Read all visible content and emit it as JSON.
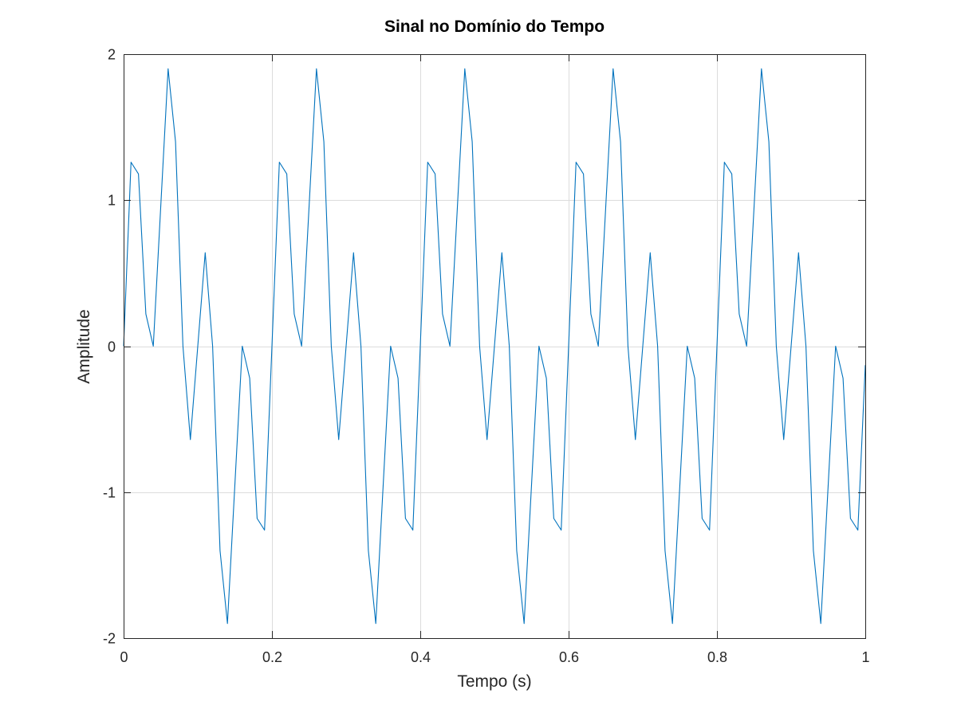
{
  "chart_data": {
    "type": "line",
    "title": "Sinal no Domínio do Tempo",
    "xlabel": "Tempo (s)",
    "ylabel": "Amplitude",
    "xlim": [
      0,
      1
    ],
    "ylim": [
      -2,
      2
    ],
    "x_ticks": [
      0,
      0.2,
      0.4,
      0.6,
      0.8,
      1
    ],
    "x_tick_labels": [
      "0",
      "0.2",
      "0.4",
      "0.6",
      "0.8",
      "1"
    ],
    "y_ticks": [
      -2,
      -1,
      0,
      1,
      2
    ],
    "y_tick_labels": [
      "-2",
      "-1",
      "0",
      "1",
      "2"
    ],
    "grid": true,
    "series": [
      {
        "color": "#0072bd",
        "x": [
          0,
          0.01,
          0.02,
          0.03,
          0.04,
          0.05,
          0.06,
          0.07,
          0.08,
          0.09,
          0.1,
          0.11,
          0.12,
          0.13,
          0.14,
          0.15,
          0.16,
          0.17,
          0.18,
          0.19,
          0.2,
          0.21,
          0.22,
          0.23,
          0.24,
          0.25,
          0.26,
          0.27,
          0.28,
          0.29,
          0.3,
          0.31,
          0.32,
          0.33,
          0.34,
          0.35,
          0.36,
          0.37,
          0.38,
          0.39,
          0.4,
          0.41,
          0.42,
          0.43,
          0.44,
          0.45,
          0.46,
          0.47,
          0.48,
          0.49,
          0.5,
          0.51,
          0.52,
          0.53,
          0.54,
          0.55,
          0.56,
          0.57,
          0.58,
          0.59,
          0.6,
          0.61,
          0.62,
          0.63,
          0.64,
          0.65,
          0.66,
          0.67,
          0.68,
          0.69,
          0.7,
          0.71,
          0.72,
          0.73,
          0.74,
          0.75,
          0.76,
          0.77,
          0.78,
          0.79,
          0.8,
          0.81,
          0.82,
          0.83,
          0.84,
          0.85,
          0.86,
          0.87,
          0.88,
          0.89,
          0.9,
          0.91,
          0.92,
          0.93,
          0.94,
          0.95,
          0.96,
          0.97,
          0.98,
          0.99,
          1.0
        ],
        "y": [
          0,
          1.26,
          1.18,
          0.22,
          0,
          0.95,
          1.9,
          1.4,
          0,
          -0.64,
          0,
          0.64,
          0,
          -1.4,
          -1.9,
          -0.95,
          0,
          -0.22,
          -1.18,
          -1.26,
          0,
          1.26,
          1.18,
          0.22,
          0,
          0.95,
          1.9,
          1.4,
          0,
          -0.64,
          0,
          0.64,
          0,
          -1.4,
          -1.9,
          -0.95,
          0,
          -0.22,
          -1.18,
          -1.26,
          0,
          1.26,
          1.18,
          0.22,
          0,
          0.95,
          1.9,
          1.4,
          0,
          -0.64,
          0,
          0.64,
          0,
          -1.4,
          -1.9,
          -0.95,
          0,
          -0.22,
          -1.18,
          -1.26,
          0,
          1.26,
          1.18,
          0.22,
          0,
          0.95,
          1.9,
          1.4,
          0,
          -0.64,
          0,
          0.64,
          0,
          -1.4,
          -1.9,
          -0.95,
          0,
          -0.22,
          -1.18,
          -1.26,
          0,
          1.26,
          1.18,
          0.22,
          0,
          0.95,
          1.9,
          1.4,
          0,
          -0.64,
          0,
          0.64,
          0,
          -1.4,
          -1.9,
          -0.95,
          0,
          -0.22,
          -1.18,
          -1.26,
          -0.13
        ]
      }
    ]
  }
}
